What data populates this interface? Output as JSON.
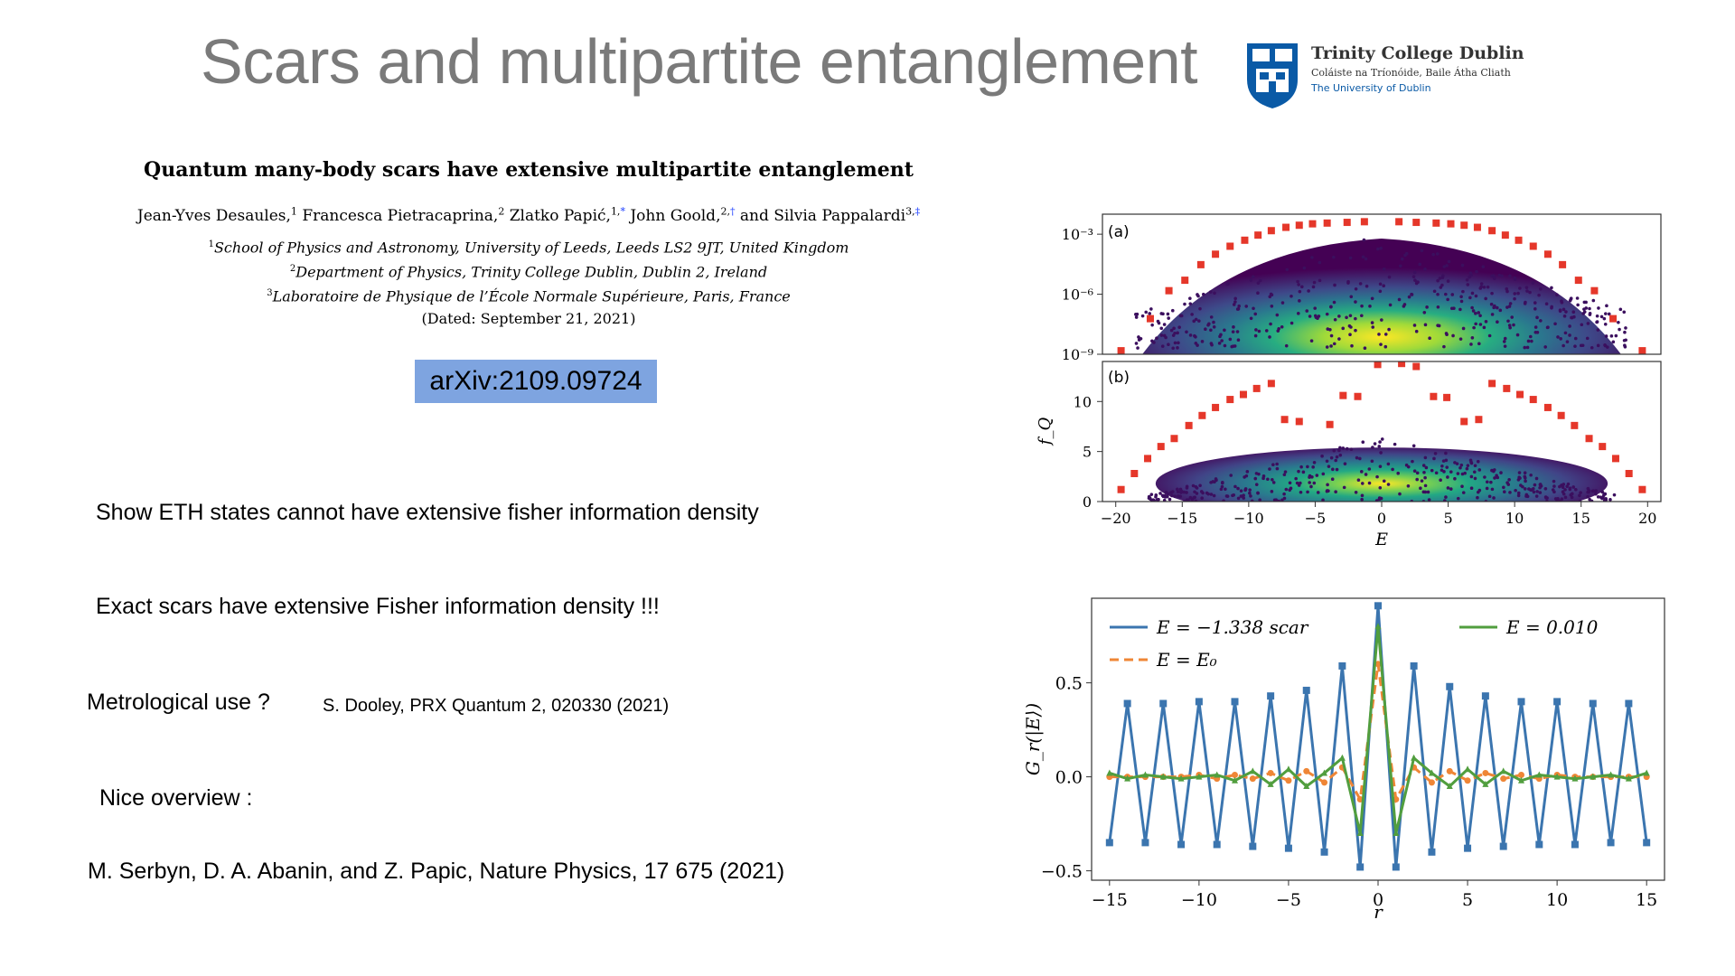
{
  "slide": {
    "title": "Scars and multipartite entanglement"
  },
  "logo": {
    "name": "Trinity College Dublin",
    "irish": "Coláiste na Tríonóide, Baile Átha Cliath",
    "university": "The University of Dublin"
  },
  "paper": {
    "title": "Quantum many-body scars have extensive multipartite entanglement",
    "authors": [
      {
        "name": "Jean-Yves Desaules,",
        "sup": "1",
        "mark": ""
      },
      {
        "name": "Francesca Pietracaprina,",
        "sup": "2",
        "mark": ""
      },
      {
        "name": "Zlatko Papić,",
        "sup": "1,",
        "mark": "*"
      },
      {
        "name": "John Goold,",
        "sup": "2,",
        "mark": "†"
      },
      {
        "name": "and Silvia Pappalardi",
        "sup": "3,",
        "mark": "‡"
      }
    ],
    "affiliations": [
      {
        "sup": "1",
        "text": "School of Physics and Astronomy, University of Leeds, Leeds LS2 9JT, United Kingdom"
      },
      {
        "sup": "2",
        "text": "Department of Physics, Trinity College Dublin, Dublin 2, Ireland"
      },
      {
        "sup": "3",
        "text": "Laboratoire de Physique de l’École Normale Supérieure, Paris, France"
      }
    ],
    "dated": "(Dated: September 21, 2021)"
  },
  "arxiv": "arXiv:2109.09724",
  "bullets": {
    "eth": "Show ETH states cannot have extensive fisher information density",
    "exact": "Exact scars have extensive Fisher information density !!!",
    "metro": "Metrological use ?",
    "dooley": "S. Dooley, PRX Quantum 2, 020330 (2021)",
    "overview": "Nice overview :",
    "serbyn": "M. Serbyn, D. A. Abanin, and Z. Papic,  Nature Physics,  17 675 (2021)"
  },
  "chart_data": [
    {
      "type": "scatter",
      "panel_label": "(a)",
      "y_scale": "log",
      "ylim": [
        1e-09,
        0.01
      ],
      "y_ticks": [
        "10⁻³",
        "10⁻⁶",
        "10⁻⁹"
      ],
      "xlim": [
        -21,
        21
      ],
      "scar_series": {
        "x": [
          -19.6,
          -17.4,
          -16.0,
          -14.8,
          -13.6,
          -12.5,
          -11.4,
          -10.3,
          -9.3,
          -8.3,
          -7.2,
          -6.2,
          -5.2,
          -4.1,
          -2.6,
          -1.3,
          1.3,
          2.6,
          4.1,
          5.2,
          6.2,
          7.2,
          8.3,
          9.3,
          10.3,
          11.4,
          12.5,
          13.6,
          14.8,
          16.0,
          17.4,
          19.6
        ],
        "y": [
          1.5e-09,
          6e-08,
          1.5e-06,
          5e-06,
          3e-05,
          0.0001,
          0.00025,
          0.0005,
          0.0009,
          0.0015,
          0.0022,
          0.0028,
          0.0033,
          0.0036,
          0.0039,
          0.0042,
          0.0042,
          0.0039,
          0.0036,
          0.0033,
          0.0028,
          0.0022,
          0.0015,
          0.0009,
          0.0005,
          0.00025,
          0.0001,
          3e-05,
          5e-06,
          1.5e-06,
          6e-08,
          1.5e-09
        ]
      }
    },
    {
      "type": "scatter",
      "panel_label": "(b)",
      "ylabel": "f_Q",
      "xlabel": "E",
      "ylim": [
        0,
        14
      ],
      "yticks": [
        0,
        5,
        10
      ],
      "xlim": [
        -21,
        21
      ],
      "xticks": [
        -20,
        -15,
        -10,
        -5,
        0,
        5,
        10,
        15,
        20
      ],
      "scar_series": {
        "x": [
          -19.6,
          -18.6,
          -17.6,
          -16.6,
          -15.6,
          -14.5,
          -13.5,
          -12.5,
          -11.4,
          -10.4,
          -9.4,
          -8.3,
          -7.3,
          -6.2,
          -3.9,
          -2.9,
          -1.8,
          -0.3,
          1.5,
          2.6,
          3.9,
          4.9,
          6.2,
          7.3,
          8.3,
          9.4,
          10.4,
          11.4,
          12.5,
          13.5,
          14.5,
          15.6,
          16.6,
          17.6,
          18.6,
          19.6
        ],
        "y": [
          1.2,
          2.8,
          4.3,
          5.5,
          6.3,
          7.6,
          8.6,
          9.4,
          10.2,
          10.7,
          11.3,
          11.8,
          8.2,
          8.0,
          7.7,
          10.6,
          10.5,
          13.7,
          13.8,
          13.5,
          10.5,
          10.4,
          8.0,
          8.2,
          11.8,
          11.3,
          10.7,
          10.2,
          9.4,
          8.6,
          7.6,
          6.3,
          5.5,
          4.3,
          2.8,
          1.2
        ]
      }
    },
    {
      "type": "line",
      "xlabel": "r",
      "ylabel": "G_r(|E⟩)",
      "xlim": [
        -16,
        16
      ],
      "ylim": [
        -0.55,
        0.95
      ],
      "xticks": [
        -15,
        -10,
        -5,
        0,
        5,
        10,
        15
      ],
      "yticks": [
        -0.5,
        0.0,
        0.5
      ],
      "legend_placement": "top",
      "series": [
        {
          "name": "E = −1.338 scar",
          "color": "#3b75af",
          "x": [
            -15,
            -14,
            -13,
            -12,
            -11,
            -10,
            -9,
            -8,
            -7,
            -6,
            -5,
            -4,
            -3,
            -2,
            -1,
            0,
            1,
            2,
            3,
            4,
            5,
            6,
            7,
            8,
            9,
            10,
            11,
            12,
            13,
            14,
            15
          ],
          "y": [
            -0.35,
            0.39,
            -0.35,
            0.39,
            -0.36,
            0.4,
            -0.36,
            0.4,
            -0.37,
            0.43,
            -0.38,
            0.46,
            -0.4,
            0.59,
            -0.48,
            0.91,
            -0.48,
            0.59,
            -0.4,
            0.48,
            -0.38,
            0.43,
            -0.37,
            0.4,
            -0.36,
            0.4,
            -0.36,
            0.39,
            -0.35,
            0.39,
            -0.35
          ]
        },
        {
          "name": "E = E₀",
          "color": "#ef8636",
          "x": [
            -15,
            -14,
            -13,
            -12,
            -11,
            -10,
            -9,
            -8,
            -7,
            -6,
            -5,
            -4,
            -3,
            -2,
            -1,
            0,
            1,
            2,
            3,
            4,
            5,
            6,
            7,
            8,
            9,
            10,
            11,
            12,
            13,
            14,
            15
          ],
          "y": [
            0.0,
            0.0,
            0.0,
            0.0,
            0.0,
            0.01,
            -0.01,
            0.01,
            -0.01,
            0.02,
            -0.02,
            0.03,
            -0.03,
            0.05,
            -0.12,
            0.6,
            -0.12,
            0.05,
            -0.03,
            0.03,
            -0.02,
            0.02,
            -0.01,
            0.01,
            -0.01,
            0.01,
            0.0,
            0.0,
            0.0,
            0.0,
            0.0
          ]
        },
        {
          "name": "E = 0.010",
          "color": "#519e3e",
          "x": [
            -15,
            -14,
            -13,
            -12,
            -11,
            -10,
            -9,
            -8,
            -7,
            -6,
            -5,
            -4,
            -3,
            -2,
            -1,
            0,
            1,
            2,
            3,
            4,
            5,
            6,
            7,
            8,
            9,
            10,
            11,
            12,
            13,
            14,
            15
          ],
          "y": [
            0.02,
            -0.01,
            0.01,
            0.0,
            -0.01,
            0.0,
            0.01,
            -0.02,
            0.03,
            -0.04,
            0.04,
            -0.05,
            0.02,
            0.1,
            -0.3,
            0.8,
            -0.3,
            0.1,
            0.02,
            -0.05,
            0.04,
            -0.04,
            0.03,
            -0.02,
            0.01,
            0.0,
            -0.01,
            0.0,
            0.01,
            -0.01,
            0.02
          ]
        }
      ]
    }
  ]
}
